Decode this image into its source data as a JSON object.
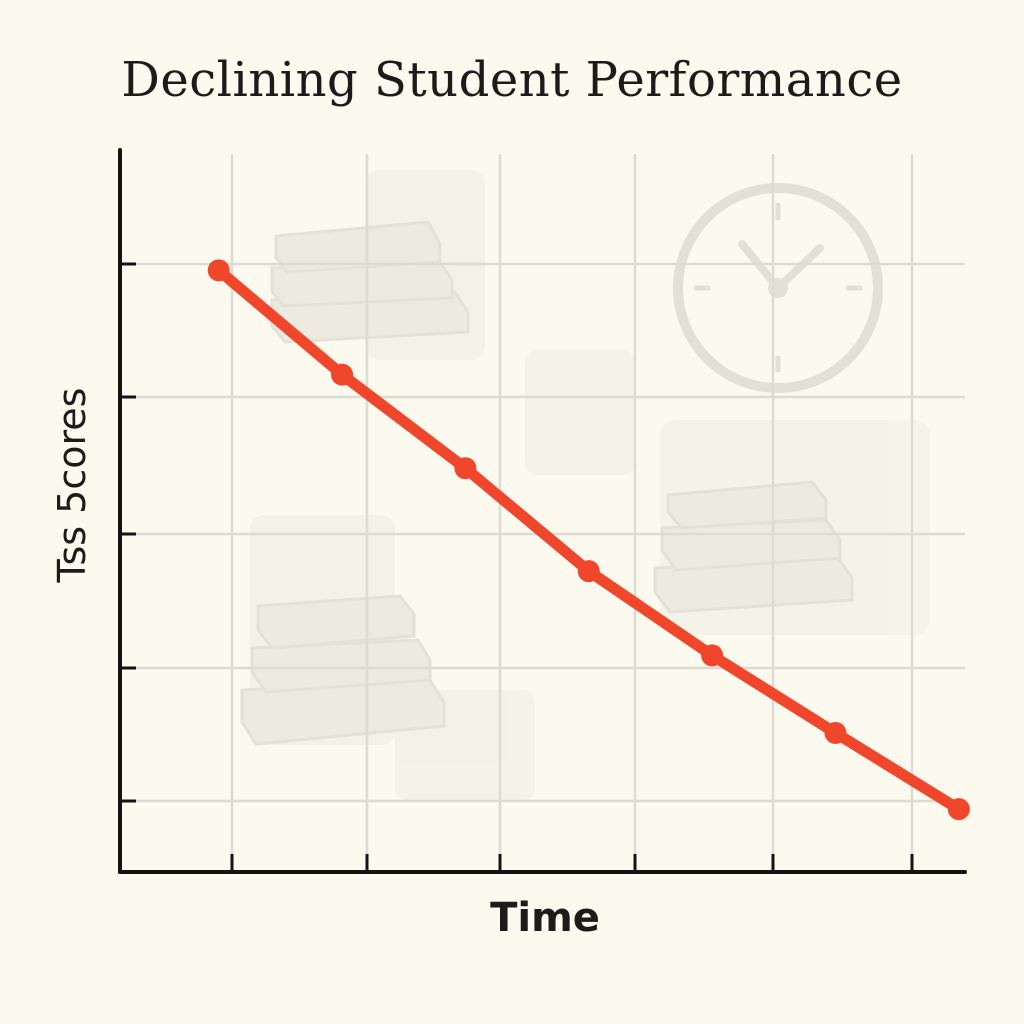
{
  "chart_data": {
    "type": "line",
    "title": "Declining Student Performance",
    "xlabel": "Time",
    "ylabel": "Tss 5cores",
    "x": [
      1,
      2,
      3,
      4,
      5,
      6,
      7
    ],
    "xlim": [
      0.2,
      7.05
    ],
    "ylim": [
      0,
      5.4
    ],
    "series": [
      {
        "values": [
          4.5,
          3.72,
          3.02,
          2.25,
          1.62,
          1.04,
          0.47
        ],
        "color": "#f0472c"
      }
    ],
    "grid": true,
    "legend": "none"
  },
  "decorations": {
    "icons": [
      "book-stack-icon",
      "book-stack-icon",
      "book-stack-icon",
      "clock-icon"
    ]
  }
}
